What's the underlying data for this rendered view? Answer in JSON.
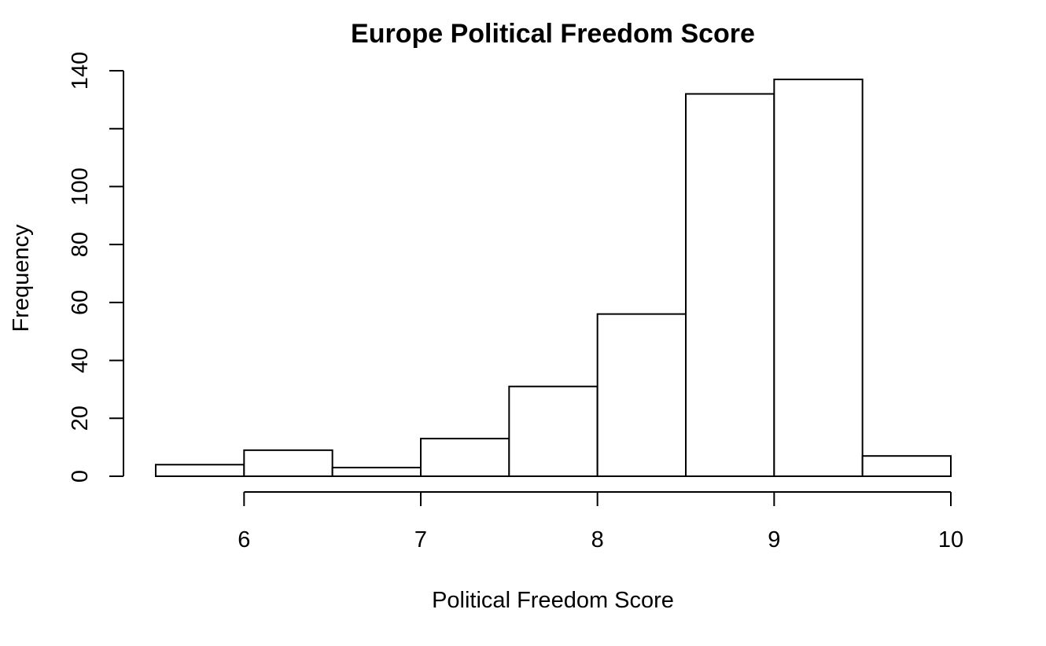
{
  "chart_data": {
    "type": "bar",
    "title": "Europe Political Freedom Score",
    "xlabel": "Political Freedom Score",
    "ylabel": "Frequency",
    "bins": [
      {
        "start": 5.5,
        "end": 6.0,
        "value": 4
      },
      {
        "start": 6.0,
        "end": 6.5,
        "value": 9
      },
      {
        "start": 6.5,
        "end": 7.0,
        "value": 3
      },
      {
        "start": 7.0,
        "end": 7.5,
        "value": 13
      },
      {
        "start": 7.5,
        "end": 8.0,
        "value": 31
      },
      {
        "start": 8.0,
        "end": 8.5,
        "value": 56
      },
      {
        "start": 8.5,
        "end": 9.0,
        "value": 132
      },
      {
        "start": 9.0,
        "end": 9.5,
        "value": 137
      },
      {
        "start": 9.5,
        "end": 10.0,
        "value": 7
      }
    ],
    "xticks": [
      6,
      7,
      8,
      9,
      10
    ],
    "yticks": [
      0,
      20,
      40,
      60,
      80,
      100,
      120,
      140
    ],
    "yticklabels": [
      "0",
      "20",
      "40",
      "60",
      "80",
      "100",
      "",
      "140"
    ],
    "xlim": [
      5.5,
      10
    ],
    "ylim": [
      0,
      140
    ],
    "grid": false,
    "legend": "none",
    "colors": {
      "bar_fill": "#ffffff",
      "bar_stroke": "#000000"
    }
  }
}
